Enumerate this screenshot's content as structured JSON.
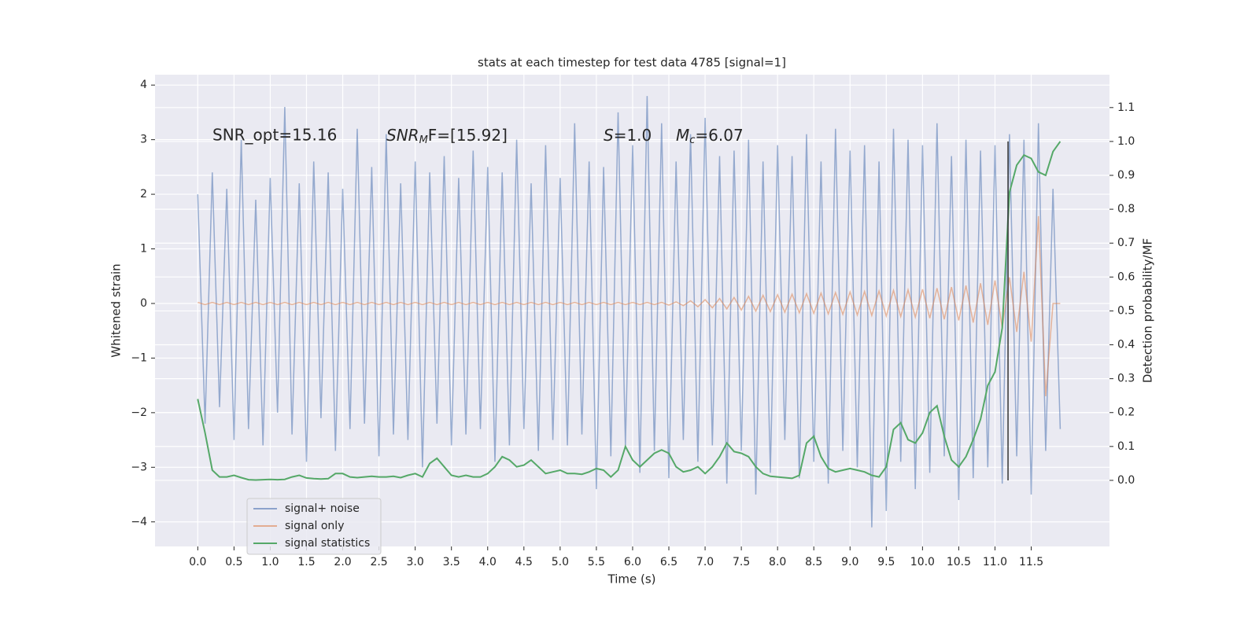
{
  "chart_data": {
    "type": "line",
    "title": "stats at each timestep for test data 4785 [signal=1]",
    "x_label": "Time (s)",
    "y_label": "Whitened strain",
    "y2_label": "Detection probability/MF",
    "annotations": [
      "SNR_opt=15.16",
      {
        "main": "SNR",
        "sub": "M",
        "rest": "F=[15.92]"
      },
      {
        "main": "S",
        "rest": "=1.0"
      },
      {
        "main": "M",
        "sub": "c",
        "rest": "=6.07"
      }
    ],
    "x": [
      0.0,
      0.1,
      0.2,
      0.3,
      0.4,
      0.5,
      0.6,
      0.7,
      0.8,
      0.9,
      1.0,
      1.1,
      1.2,
      1.3,
      1.4,
      1.5,
      1.6,
      1.7,
      1.8,
      1.9,
      2.0,
      2.1,
      2.2,
      2.3,
      2.4,
      2.5,
      2.6,
      2.7,
      2.8,
      2.9,
      3.0,
      3.1,
      3.2,
      3.3,
      3.4,
      3.5,
      3.6,
      3.7,
      3.8,
      3.9,
      4.0,
      4.1,
      4.2,
      4.3,
      4.4,
      4.5,
      4.6,
      4.7,
      4.8,
      4.9,
      5.0,
      5.1,
      5.2,
      5.3,
      5.4,
      5.5,
      5.6,
      5.7,
      5.8,
      5.9,
      6.0,
      6.1,
      6.2,
      6.3,
      6.4,
      6.5,
      6.6,
      6.7,
      6.8,
      6.9,
      7.0,
      7.1,
      7.2,
      7.3,
      7.4,
      7.5,
      7.6,
      7.7,
      7.8,
      7.9,
      8.0,
      8.1,
      8.2,
      8.3,
      8.4,
      8.5,
      8.6,
      8.7,
      8.8,
      8.9,
      9.0,
      9.1,
      9.2,
      9.3,
      9.4,
      9.5,
      9.6,
      9.7,
      9.8,
      9.9,
      10.0,
      10.1,
      10.2,
      10.3,
      10.4,
      10.5,
      10.6,
      10.7,
      10.8,
      10.9,
      11.0,
      11.1,
      11.2,
      11.3,
      11.4,
      11.5,
      11.6,
      11.7,
      11.8,
      11.9
    ],
    "series": [
      {
        "name": "signal+ noise",
        "color": "#4c72b0",
        "axis": "y",
        "values": [
          2.0,
          -2.2,
          2.4,
          -1.9,
          2.1,
          -2.5,
          3.0,
          -2.3,
          1.9,
          -2.6,
          2.3,
          -2.0,
          3.6,
          -2.4,
          2.2,
          -2.9,
          2.6,
          -2.1,
          2.4,
          -2.7,
          2.1,
          -2.3,
          3.2,
          -2.2,
          2.5,
          -2.8,
          3.1,
          -2.4,
          2.2,
          -2.5,
          2.6,
          -3.0,
          2.4,
          -2.2,
          2.7,
          -2.6,
          2.3,
          -2.4,
          2.8,
          -2.3,
          2.5,
          -2.9,
          2.4,
          -2.6,
          3.0,
          -2.3,
          2.2,
          -2.7,
          2.9,
          -2.5,
          2.3,
          -2.6,
          3.3,
          -2.4,
          2.6,
          -3.4,
          2.5,
          -2.8,
          3.5,
          -2.6,
          2.9,
          -3.1,
          3.8,
          -2.7,
          3.3,
          -3.2,
          2.6,
          -2.5,
          3.1,
          -2.9,
          3.4,
          -2.6,
          2.7,
          -3.3,
          2.8,
          -2.7,
          3.0,
          -3.5,
          2.6,
          -3.1,
          2.9,
          -2.5,
          2.7,
          -3.2,
          3.1,
          -2.9,
          2.6,
          -3.3,
          3.2,
          -2.7,
          2.8,
          -3.0,
          2.9,
          -4.1,
          2.6,
          -3.8,
          3.2,
          -2.9,
          3.0,
          -3.4,
          2.9,
          -3.1,
          3.3,
          -2.8,
          2.7,
          -3.6,
          3.0,
          -3.2,
          2.8,
          -3.0,
          2.9,
          -3.3,
          3.1,
          -2.8,
          3.0,
          -3.5,
          3.3,
          -2.7,
          2.1,
          -2.3
        ]
      },
      {
        "name": "signal only",
        "color": "#dd8452",
        "axis": "y",
        "values": [
          0.02,
          -0.02,
          0.02,
          -0.02,
          0.02,
          -0.02,
          0.02,
          -0.02,
          0.02,
          -0.02,
          0.02,
          -0.02,
          0.02,
          -0.02,
          0.02,
          -0.02,
          0.02,
          -0.02,
          0.02,
          -0.02,
          0.02,
          -0.02,
          0.02,
          -0.02,
          0.02,
          -0.02,
          0.02,
          -0.02,
          0.02,
          -0.02,
          0.02,
          -0.02,
          0.02,
          -0.02,
          0.02,
          -0.02,
          0.02,
          -0.02,
          0.02,
          -0.02,
          0.02,
          -0.02,
          0.02,
          -0.02,
          0.02,
          -0.02,
          0.02,
          -0.02,
          0.02,
          -0.02,
          0.02,
          -0.02,
          0.02,
          -0.02,
          0.02,
          -0.02,
          0.02,
          -0.02,
          0.02,
          -0.02,
          0.02,
          -0.02,
          0.02,
          -0.02,
          0.02,
          -0.03,
          0.03,
          -0.04,
          0.05,
          -0.06,
          0.07,
          -0.08,
          0.09,
          -0.1,
          0.11,
          -0.12,
          0.13,
          -0.14,
          0.15,
          -0.15,
          0.16,
          -0.16,
          0.17,
          -0.17,
          0.18,
          -0.18,
          0.19,
          -0.19,
          0.2,
          -0.2,
          0.21,
          -0.21,
          0.22,
          -0.22,
          0.23,
          -0.23,
          0.24,
          -0.24,
          0.25,
          -0.25,
          0.26,
          -0.27,
          0.28,
          -0.29,
          0.3,
          -0.31,
          0.33,
          -0.35,
          0.37,
          -0.39,
          0.42,
          -0.45,
          0.48,
          -0.52,
          0.58,
          -0.7,
          1.6,
          -1.7,
          0.0,
          0.0
        ]
      },
      {
        "name": "signal statistics",
        "color": "#55a868",
        "axis": "y2",
        "values": [
          0.24,
          0.14,
          0.03,
          0.01,
          0.01,
          0.015,
          0.008,
          0.002,
          0.001,
          0.002,
          0.003,
          0.002,
          0.003,
          0.01,
          0.015,
          0.007,
          0.005,
          0.004,
          0.005,
          0.02,
          0.02,
          0.01,
          0.008,
          0.01,
          0.012,
          0.01,
          0.01,
          0.012,
          0.008,
          0.015,
          0.02,
          0.01,
          0.05,
          0.065,
          0.04,
          0.015,
          0.01,
          0.015,
          0.01,
          0.01,
          0.02,
          0.04,
          0.07,
          0.06,
          0.04,
          0.045,
          0.06,
          0.04,
          0.02,
          0.025,
          0.03,
          0.02,
          0.02,
          0.018,
          0.025,
          0.035,
          0.03,
          0.01,
          0.03,
          0.1,
          0.06,
          0.04,
          0.06,
          0.08,
          0.09,
          0.08,
          0.04,
          0.025,
          0.03,
          0.04,
          0.02,
          0.04,
          0.07,
          0.11,
          0.085,
          0.08,
          0.07,
          0.04,
          0.02,
          0.012,
          0.01,
          0.008,
          0.006,
          0.015,
          0.11,
          0.13,
          0.07,
          0.035,
          0.025,
          0.03,
          0.035,
          0.03,
          0.025,
          0.015,
          0.01,
          0.04,
          0.15,
          0.17,
          0.12,
          0.11,
          0.14,
          0.2,
          0.22,
          0.13,
          0.06,
          0.04,
          0.07,
          0.12,
          0.18,
          0.28,
          0.32,
          0.45,
          0.85,
          0.93,
          0.96,
          0.95,
          0.91,
          0.9,
          0.97,
          1.0
        ]
      }
    ],
    "vline_x": 11.18,
    "xlim": [
      -0.59,
      12.58
    ],
    "ylim": [
      -4.45,
      4.19
    ],
    "y2lim": [
      -0.195,
      1.197
    ],
    "xticks": [
      {
        "value": 0,
        "label": "0.0"
      },
      0.5,
      {
        "value": 1,
        "label": "1.0"
      },
      1.5,
      {
        "value": 2,
        "label": "2.0"
      },
      2.5,
      {
        "value": 3,
        "label": "3.0"
      },
      3.5,
      {
        "value": 4,
        "label": "4.0"
      },
      4.5,
      {
        "value": 5,
        "label": "5.0"
      },
      5.5,
      {
        "value": 6,
        "label": "6.0"
      },
      6.5,
      {
        "value": 7,
        "label": "7.0"
      },
      7.5,
      {
        "value": 8,
        "label": "8.0"
      },
      8.5,
      {
        "value": 9,
        "label": "9.0"
      },
      9.5,
      {
        "value": 10,
        "label": "10.0"
      },
      10.5,
      {
        "value": 11,
        "label": "11.0"
      },
      11.5
    ],
    "yticks": [
      {
        "value": -4,
        "label": "−4"
      },
      {
        "value": -3,
        "label": "−3"
      },
      {
        "value": -2,
        "label": "−2"
      },
      {
        "value": -1,
        "label": "−1"
      },
      0,
      1,
      2,
      3,
      4
    ],
    "y2ticks": [
      {
        "value": 0,
        "label": "0.0"
      },
      0.1,
      0.2,
      0.3,
      0.4,
      0.5,
      0.6,
      0.7,
      0.8,
      0.9,
      {
        "value": 1,
        "label": "1.0"
      },
      1.1
    ],
    "grid": true,
    "legend": "lower left"
  }
}
